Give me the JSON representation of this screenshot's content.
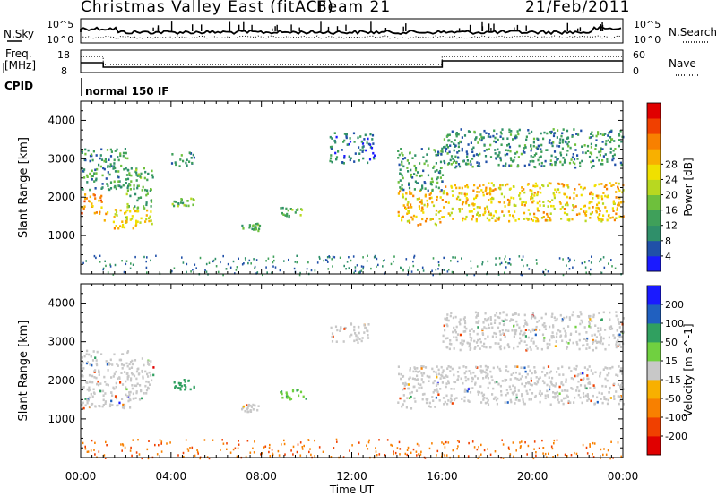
{
  "header": {
    "station": "Christmas Valley East (fitACF)",
    "beam": "Beam 21",
    "date": "21/Feb/2011"
  },
  "panel_labels": {
    "nsky": "N.Sky",
    "nsky_top": "10^5",
    "nsky_bottom": "10^0",
    "nsearch": "N.Search",
    "nsearch_top": "10^5",
    "nsearch_bottom": "10^0",
    "freq_line1": "Freq.",
    "freq_line2": "[MHz]",
    "freq_top": "18",
    "freq_bottom": "8",
    "nave": "Nave",
    "nave_top": "60",
    "nave_bottom": "0",
    "cpid": "CPID",
    "cpid_value": "normal 150 IF"
  },
  "chart_data": [
    {
      "type": "heatmap",
      "title": "",
      "ylabel": "Slant Range [km]",
      "xlabel": "Time UT",
      "ylim": [
        0,
        4500
      ],
      "xlim": [
        0,
        24
      ],
      "yticks": [
        1000,
        2000,
        3000,
        4000
      ],
      "xticks": [
        "00:00",
        "04:00",
        "08:00",
        "12:00",
        "16:00",
        "20:00",
        "00:00"
      ],
      "colorbar": {
        "label": "Power [dB]",
        "ticks": [
          4,
          8,
          12,
          16,
          20,
          24,
          28
        ],
        "colors": [
          "#1a1aff",
          "#2050a8",
          "#2f8f6a",
          "#3fa05a",
          "#6ec03c",
          "#b8d820",
          "#f0e000",
          "#f8b000",
          "#f88000",
          "#f04000",
          "#e00000"
        ]
      },
      "regions": [
        {
          "t": [
            0,
            1.0
          ],
          "r": [
            1550,
            2100
          ],
          "value": 22
        },
        {
          "t": [
            0,
            2.2
          ],
          "r": [
            2200,
            3300
          ],
          "value": 8
        },
        {
          "t": [
            1.0,
            3.2
          ],
          "r": [
            1200,
            1700
          ],
          "value": 18
        },
        {
          "t": [
            2.0,
            3.2
          ],
          "r": [
            1700,
            2800
          ],
          "value": 10
        },
        {
          "t": [
            4.0,
            5.0
          ],
          "r": [
            1800,
            2000
          ],
          "value": 11
        },
        {
          "t": [
            4.0,
            5.0
          ],
          "r": [
            2800,
            3200
          ],
          "value": 6
        },
        {
          "t": [
            7.1,
            7.9
          ],
          "r": [
            1150,
            1350
          ],
          "value": 10
        },
        {
          "t": [
            8.8,
            9.8
          ],
          "r": [
            1500,
            1800
          ],
          "value": 11
        },
        {
          "t": [
            11.0,
            13.0
          ],
          "r": [
            2900,
            3700
          ],
          "value": 5
        },
        {
          "t": [
            14.0,
            16.0
          ],
          "r": [
            1300,
            2200
          ],
          "value": 20
        },
        {
          "t": [
            14.0,
            16.0
          ],
          "r": [
            2200,
            3300
          ],
          "value": 8
        },
        {
          "t": [
            16.0,
            24.0
          ],
          "r": [
            1400,
            2400
          ],
          "value": 19
        },
        {
          "t": [
            16.0,
            24.0
          ],
          "r": [
            2800,
            3800
          ],
          "value": 7
        }
      ]
    },
    {
      "type": "heatmap",
      "title": "",
      "ylabel": "Slant Range [km]",
      "xlabel": "Time UT",
      "ylim": [
        0,
        4500
      ],
      "xlim": [
        0,
        24
      ],
      "yticks": [
        1000,
        2000,
        3000,
        4000
      ],
      "xticks": [
        "00:00",
        "04:00",
        "08:00",
        "12:00",
        "16:00",
        "20:00",
        "00:00"
      ],
      "colorbar": {
        "label": "Velocity [m s^-1]",
        "ticks": [
          200,
          100,
          50,
          15,
          -15,
          -50,
          -100,
          -200
        ],
        "colors": [
          "#1a1aff",
          "#2060c0",
          "#30a060",
          "#70d040",
          "#c8c8c8",
          "#f8b000",
          "#f88000",
          "#f04000",
          "#e00000"
        ]
      },
      "regions": [
        {
          "t": [
            0,
            2.2
          ],
          "r": [
            1300,
            2800
          ],
          "value": 0
        },
        {
          "t": [
            2.0,
            3.2
          ],
          "r": [
            1500,
            2600
          ],
          "value": 0
        },
        {
          "t": [
            4.0,
            5.0
          ],
          "r": [
            1750,
            2050
          ],
          "value": 80
        },
        {
          "t": [
            7.1,
            7.9
          ],
          "r": [
            1200,
            1400
          ],
          "value": 0
        },
        {
          "t": [
            8.8,
            10.0
          ],
          "r": [
            1500,
            1800
          ],
          "value": 40
        },
        {
          "t": [
            11.0,
            12.8
          ],
          "r": [
            3000,
            3500
          ],
          "value": 0
        },
        {
          "t": [
            14.0,
            16.0
          ],
          "r": [
            1300,
            2400
          ],
          "value": 0
        },
        {
          "t": [
            16.0,
            24.0
          ],
          "r": [
            1400,
            2400
          ],
          "value": 0
        },
        {
          "t": [
            16.0,
            24.0
          ],
          "r": [
            2800,
            3800
          ],
          "value": 0
        }
      ]
    }
  ]
}
